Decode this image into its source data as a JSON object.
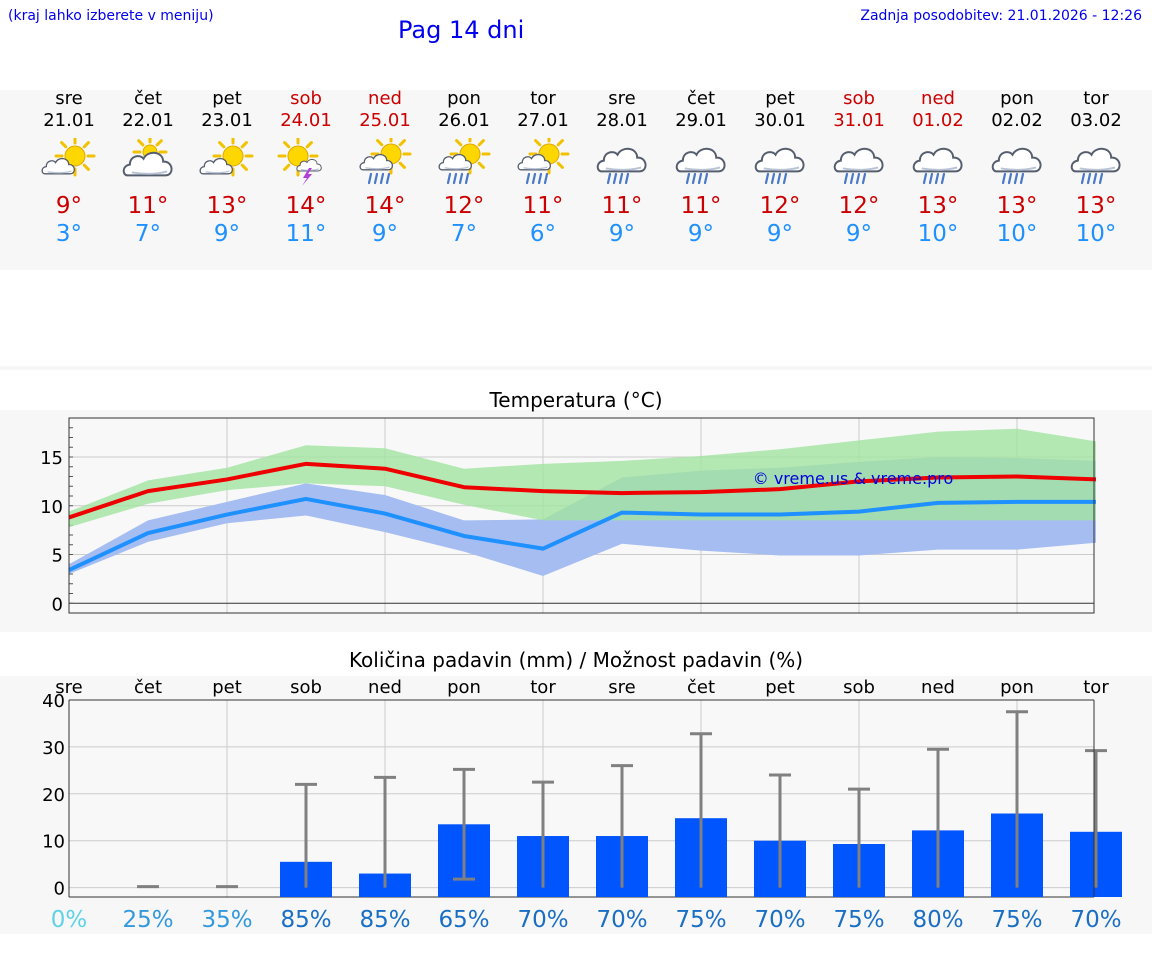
{
  "header": {
    "location_hint": "(kraj lahko izberete v meniju)",
    "title": "Pag 14 dni",
    "updated": "Zadnja posodobitev: 21.01.2026 - 12:26"
  },
  "days": [
    {
      "name": "sre",
      "date": "21.01",
      "weekend": false,
      "icon": "sun-cloud-icon",
      "tmax": "9°",
      "tmin": "3°"
    },
    {
      "name": "čet",
      "date": "22.01",
      "weekend": false,
      "icon": "partly-cloudy-icon",
      "tmax": "11°",
      "tmin": "7°"
    },
    {
      "name": "pet",
      "date": "23.01",
      "weekend": false,
      "icon": "sun-cloud-icon",
      "tmax": "13°",
      "tmin": "9°"
    },
    {
      "name": "sob",
      "date": "24.01",
      "weekend": true,
      "icon": "sun-thunder-icon",
      "tmax": "14°",
      "tmin": "11°"
    },
    {
      "name": "ned",
      "date": "25.01",
      "weekend": true,
      "icon": "sun-rain-icon",
      "tmax": "14°",
      "tmin": "9°"
    },
    {
      "name": "pon",
      "date": "26.01",
      "weekend": false,
      "icon": "sun-rain-icon",
      "tmax": "12°",
      "tmin": "7°"
    },
    {
      "name": "tor",
      "date": "27.01",
      "weekend": false,
      "icon": "sun-rain-icon",
      "tmax": "11°",
      "tmin": "6°"
    },
    {
      "name": "sre",
      "date": "28.01",
      "weekend": false,
      "icon": "cloud-rain-icon",
      "tmax": "11°",
      "tmin": "9°"
    },
    {
      "name": "čet",
      "date": "29.01",
      "weekend": false,
      "icon": "cloud-rain-icon",
      "tmax": "11°",
      "tmin": "9°"
    },
    {
      "name": "pet",
      "date": "30.01",
      "weekend": false,
      "icon": "cloud-rain-icon",
      "tmax": "12°",
      "tmin": "9°"
    },
    {
      "name": "sob",
      "date": "31.01",
      "weekend": true,
      "icon": "cloud-rain-icon",
      "tmax": "12°",
      "tmin": "9°"
    },
    {
      "name": "ned",
      "date": "01.02",
      "weekend": true,
      "icon": "cloud-rain-icon",
      "tmax": "13°",
      "tmin": "10°"
    },
    {
      "name": "pon",
      "date": "02.02",
      "weekend": false,
      "icon": "cloud-rain-icon",
      "tmax": "13°",
      "tmin": "10°"
    },
    {
      "name": "tor",
      "date": "03.02",
      "weekend": false,
      "icon": "cloud-rain-icon",
      "tmax": "13°",
      "tmin": "10°"
    }
  ],
  "colors": {
    "max_line": "#ee0000",
    "min_line": "#1e90ff",
    "max_band": "#a3e4a0",
    "min_band": "#a6bdf2",
    "overlap_band": "#72bca3",
    "bar": "#0055ff",
    "whisker": "#808080",
    "pct_light": "#5fd3e6",
    "pct_mid": "#3399dd",
    "pct_dark": "#1a6fc4"
  },
  "chart_data": [
    {
      "type": "line",
      "title": "Temperatura (°C)",
      "x": [
        0,
        1,
        2,
        3,
        4,
        5,
        6,
        7,
        8,
        9,
        10,
        11,
        12,
        13
      ],
      "ylim": [
        -1,
        19
      ],
      "yticks": [
        0,
        5,
        10,
        15
      ],
      "watermark": "© vreme.us & vreme.pro",
      "series": [
        {
          "name": "max",
          "values": [
            8.8,
            11.5,
            12.7,
            14.3,
            13.8,
            11.9,
            11.5,
            11.3,
            11.4,
            11.7,
            12.5,
            12.9,
            13.0,
            12.7
          ],
          "band_low": [
            7.8,
            10.2,
            11.6,
            12.3,
            12.0,
            10.1,
            8.5,
            8.5,
            8.5,
            8.5,
            8.5,
            8.5,
            8.5,
            8.5
          ],
          "band_high": [
            9.4,
            12.6,
            13.9,
            16.2,
            15.9,
            13.8,
            14.3,
            14.6,
            15.1,
            15.8,
            16.7,
            17.6,
            17.9,
            16.6
          ]
        },
        {
          "name": "min",
          "values": [
            3.4,
            7.2,
            9.1,
            10.7,
            9.2,
            6.9,
            5.6,
            9.3,
            9.1,
            9.1,
            9.4,
            10.3,
            10.4,
            10.4
          ],
          "band_low": [
            3.0,
            6.3,
            8.2,
            9.0,
            7.3,
            5.3,
            2.8,
            6.1,
            5.4,
            4.9,
            4.9,
            5.5,
            5.5,
            6.2
          ],
          "band_high": [
            4.0,
            8.5,
            10.4,
            12.3,
            11.1,
            8.5,
            8.6,
            12.9,
            13.6,
            13.9,
            14.5,
            15.0,
            14.9,
            14.6
          ]
        }
      ]
    },
    {
      "type": "bar",
      "title": "Količina padavin (mm) / Možnost padavin (%)",
      "categories": [
        "sre",
        "čet",
        "pet",
        "sob",
        "ned",
        "pon",
        "tor",
        "sre",
        "čet",
        "pet",
        "sob",
        "ned",
        "pon",
        "tor"
      ],
      "values": [
        0,
        0,
        0,
        5.5,
        3,
        13.5,
        11,
        11,
        14.8,
        10,
        9.3,
        12.2,
        15.8,
        11.9
      ],
      "err_low": [
        0,
        0,
        0,
        0,
        0,
        1.8,
        0,
        0,
        0,
        0,
        0,
        0,
        0,
        0
      ],
      "err_high": [
        0,
        0.2,
        0.2,
        22,
        23.5,
        25.2,
        22.5,
        26,
        32.8,
        24,
        21,
        29.5,
        37.5,
        29.2
      ],
      "ylim": [
        -2,
        40
      ],
      "yticks": [
        0,
        10,
        20,
        30,
        40
      ],
      "chance": [
        "0%",
        "25%",
        "35%",
        "85%",
        "85%",
        "65%",
        "70%",
        "70%",
        "75%",
        "70%",
        "75%",
        "80%",
        "75%",
        "70%"
      ]
    }
  ]
}
